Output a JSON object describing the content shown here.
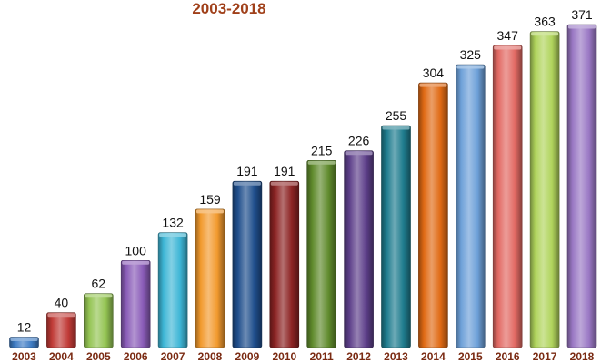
{
  "chart_data": {
    "type": "bar",
    "title": "2003-2018",
    "categories": [
      "2003",
      "2004",
      "2005",
      "2006",
      "2007",
      "2008",
      "2009",
      "2010",
      "2011",
      "2012",
      "2013",
      "2014",
      "2015",
      "2016",
      "2017",
      "2018"
    ],
    "values": [
      12,
      40,
      62,
      100,
      132,
      159,
      191,
      191,
      215,
      226,
      255,
      304,
      325,
      347,
      363,
      371
    ],
    "colors": [
      "#3f7cc4",
      "#c03a36",
      "#94c453",
      "#8a5cb8",
      "#3eb6d6",
      "#f29a2e",
      "#1f4e8c",
      "#8c2323",
      "#5f8a2c",
      "#5d3f8a",
      "#1f7c8e",
      "#e06a14",
      "#6da0d8",
      "#e26a64",
      "#b0d45c",
      "#9a78c4"
    ],
    "ylim": [
      0,
      371
    ],
    "grid": false,
    "legend": "none"
  }
}
